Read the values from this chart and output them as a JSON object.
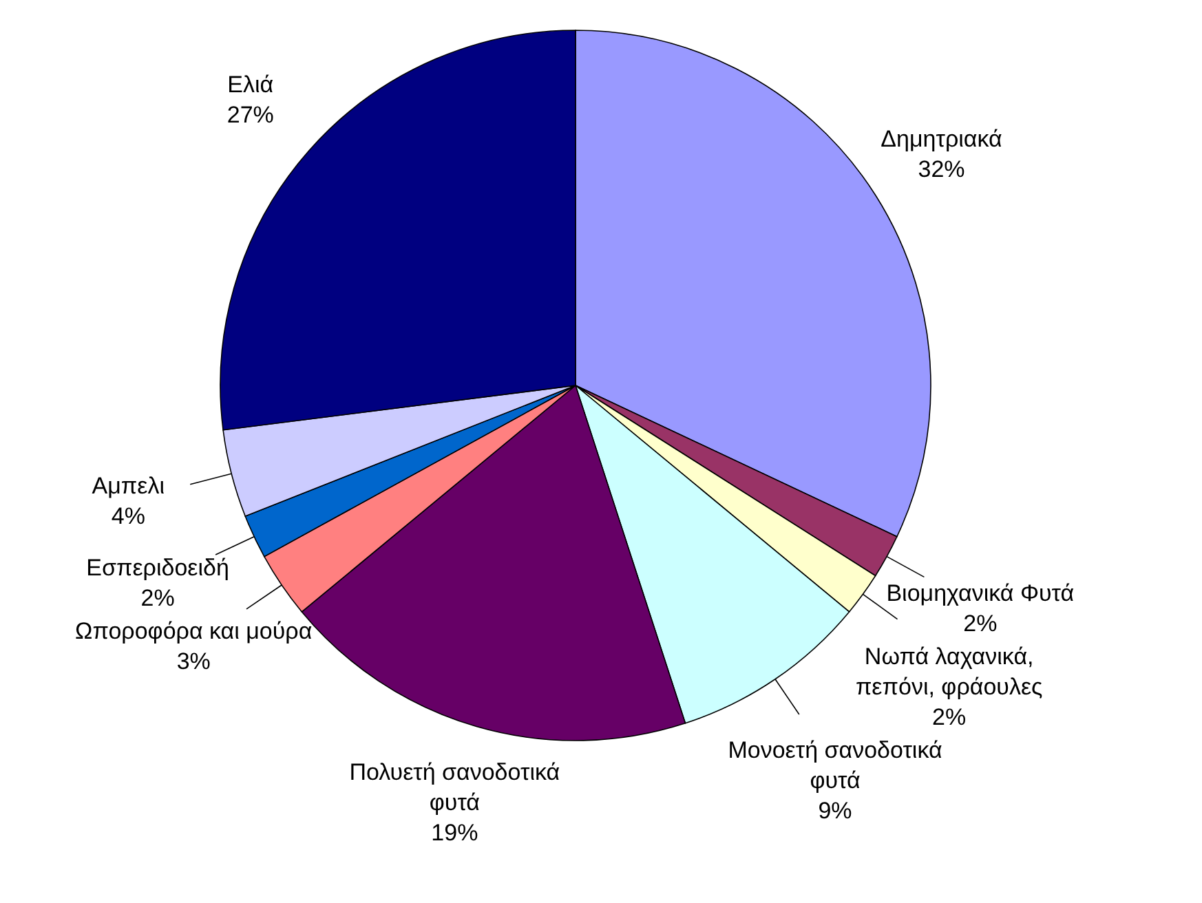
{
  "chart_data": {
    "type": "pie",
    "categories": [
      "Δημητριακά",
      "Βιομηχανικά Φυτά",
      "Νωπά λαχανικά, πεπόνι, φράουλες",
      "Μονοετή σανοδοτικά φυτά",
      "Πολυετή σανοδοτικά φυτά",
      "Ωποροφόρα και μούρα",
      "Εσπεριδοειδή",
      "Αμπελι",
      "Ελιά"
    ],
    "values": [
      32,
      2,
      2,
      9,
      19,
      3,
      2,
      4,
      27
    ],
    "value_labels": [
      "32%",
      "2%",
      "2%",
      "9%",
      "19%",
      "3%",
      "2%",
      "4%",
      "27%"
    ],
    "colors": [
      "#9999ff",
      "#993366",
      "#ffffcc",
      "#ccffff",
      "#660066",
      "#ff8080",
      "#0066cc",
      "#ccccff",
      "#000080"
    ]
  }
}
